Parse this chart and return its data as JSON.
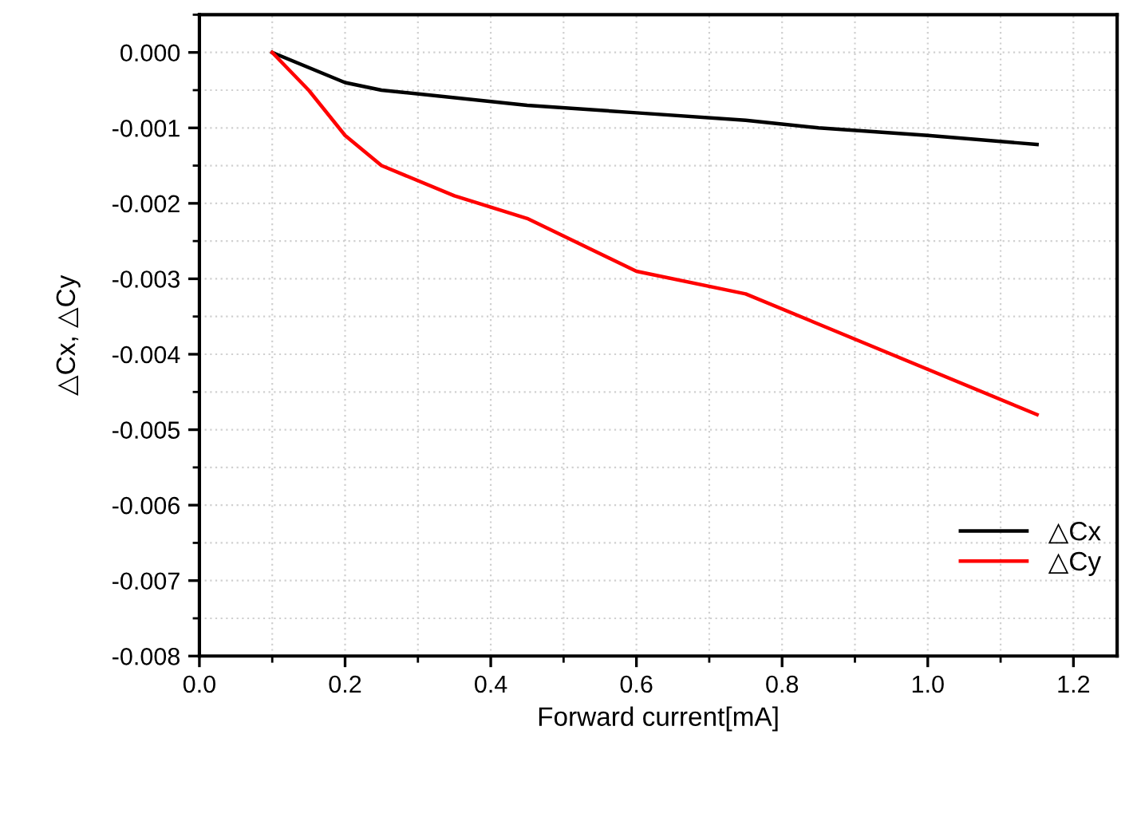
{
  "chart_data": {
    "type": "line",
    "xlabel": "Forward current[mA]",
    "ylabel": "△Cx, △Cy",
    "series": [
      {
        "name": "△Cx",
        "color": "#000000",
        "x": [
          0.1,
          0.2,
          0.25,
          0.45,
          0.6,
          0.75,
          0.85,
          1.0,
          1.15
        ],
        "values": [
          0,
          -0.0004,
          -0.0005,
          -0.0007,
          -0.0008,
          -0.0009,
          -0.001,
          -0.0011,
          -0.00122
        ]
      },
      {
        "name": "△Cy",
        "color": "#ff0000",
        "x": [
          0.1,
          0.15,
          0.2,
          0.25,
          0.35,
          0.45,
          0.6,
          0.75,
          1.15
        ],
        "values": [
          0,
          -0.0005,
          -0.0011,
          -0.0015,
          -0.0019,
          -0.0022,
          -0.0029,
          -0.0032,
          -0.0048
        ]
      }
    ],
    "xlim": [
      0,
      1.26
    ],
    "xticks": [
      {
        "value": 0,
        "label": "0.0"
      },
      {
        "value": 0.2,
        "label": "0.2"
      },
      {
        "value": 0.4,
        "label": "0.4"
      },
      {
        "value": 0.6,
        "label": "0.6"
      },
      {
        "value": 0.8,
        "label": "0.8"
      },
      {
        "value": 1.0,
        "label": "1.0"
      },
      {
        "value": 1.2,
        "label": "1.2"
      }
    ],
    "ylim": [
      -0.008,
      0.0005
    ],
    "yticks": [
      {
        "value": -0.008,
        "label": "-0.008"
      },
      {
        "value": -0.007,
        "label": "-0.007"
      },
      {
        "value": -0.006,
        "label": "-0.006"
      },
      {
        "value": -0.005,
        "label": "-0.005"
      },
      {
        "value": -0.004,
        "label": "-0.004"
      },
      {
        "value": -0.003,
        "label": "-0.003"
      },
      {
        "value": -0.002,
        "label": "-0.002"
      },
      {
        "value": -0.001,
        "label": "-0.001"
      },
      {
        "value": 0,
        "label": "0.000"
      }
    ],
    "grid": true,
    "legend": "lower right",
    "marker": "none",
    "line_style": "solid"
  }
}
